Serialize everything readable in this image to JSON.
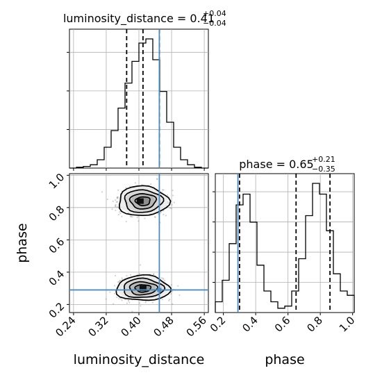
{
  "chart_data": {
    "type": "corner",
    "parameters": [
      "luminosity_distance",
      "phase"
    ],
    "axis_labels": {
      "x1": "luminosity_distance",
      "x2": "phase",
      "y2": "phase"
    },
    "truth": {
      "luminosity_distance": 0.45,
      "phase": 0.29
    },
    "marginals": [
      {
        "parameter": "luminosity_distance",
        "title": {
          "name": "luminosity_distance",
          "median": "0.41",
          "plus": "+0.04",
          "minus": "−0.04"
        },
        "quantiles": [
          0.37,
          0.41,
          0.45
        ],
        "xlim": [
          0.23,
          0.57
        ],
        "xticks": [
          "0.24",
          "0.32",
          "0.40",
          "0.48",
          "0.56"
        ],
        "xtick_values": [
          0.24,
          0.32,
          0.4,
          0.48,
          0.56
        ],
        "hist_bins_start": 0.23,
        "hist_bin_width": 0.017,
        "hist_counts": [
          0,
          1,
          2,
          4,
          10,
          25,
          45,
          72,
          102,
          128,
          150,
          155,
          130,
          92,
          55,
          25,
          10,
          4,
          1,
          0
        ]
      },
      {
        "parameter": "phase",
        "title": {
          "name": "phase",
          "median": "0.65",
          "plus": "+0.21",
          "minus": "−0.35"
        },
        "quantiles": [
          0.3,
          0.65,
          0.86
        ],
        "xlim": [
          0.15,
          1.01
        ],
        "xticks": [
          "0.2",
          "0.4",
          "0.6",
          "0.8",
          "1.0"
        ],
        "xtick_values": [
          0.2,
          0.4,
          0.6,
          0.8,
          1.0
        ],
        "hist_bins_start": 0.15,
        "hist_bin_width": 0.043,
        "hist_counts": [
          5,
          15,
          32,
          50,
          55,
          42,
          22,
          10,
          5,
          2,
          3,
          10,
          25,
          45,
          60,
          55,
          38,
          18,
          10,
          8
        ]
      }
    ],
    "joint": {
      "x": "luminosity_distance",
      "y": "phase",
      "xlim": [
        0.23,
        0.57
      ],
      "ylim": [
        0.15,
        1.01
      ],
      "yticks": [
        "0.2",
        "0.4",
        "0.6",
        "0.8",
        "1.0"
      ],
      "ytick_values": [
        0.2,
        0.4,
        0.6,
        0.8,
        1.0
      ],
      "modes": [
        {
          "x_center": 0.41,
          "y_center": 0.3,
          "x_sd": 0.032,
          "y_sd": 0.038,
          "weight": 0.55
        },
        {
          "x_center": 0.41,
          "y_center": 0.84,
          "x_sd": 0.03,
          "y_sd": 0.045,
          "weight": 0.45
        }
      ],
      "contour_levels": 4
    },
    "grid": true,
    "colors": {
      "hist": "#000000",
      "truth": "#4c8bc0",
      "scatter": "#7f7f7f",
      "density": "#000000"
    }
  }
}
